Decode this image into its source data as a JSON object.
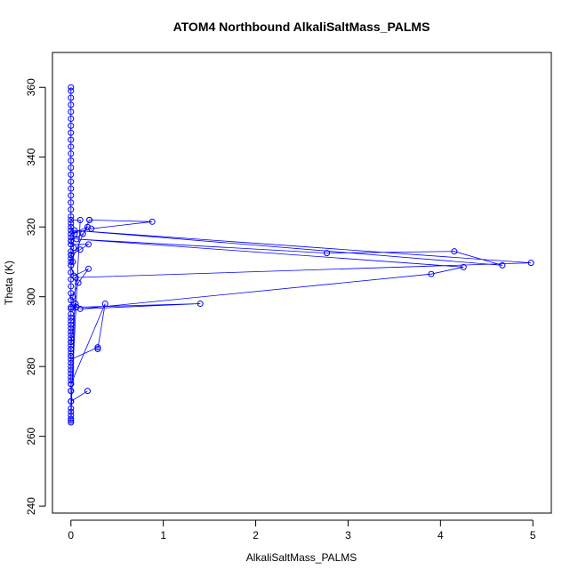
{
  "chart_data": {
    "type": "line",
    "title": "ATOM4 Northbound AlkaliSaltMass_PALMS",
    "xlabel": "AlkaliSaltMass_PALMS",
    "ylabel": "Theta (K)",
    "xlim": [
      -0.2,
      5.2
    ],
    "ylim": [
      238,
      370
    ],
    "xticks": [
      0,
      1,
      2,
      3,
      4,
      5
    ],
    "yticks": [
      240,
      260,
      280,
      300,
      320,
      340,
      360
    ],
    "grid": false,
    "legend": "none",
    "colors": {
      "series": "#0000ff",
      "axis": "#000000"
    },
    "series": [
      {
        "marker": "open-circle",
        "x": [
          0,
          0,
          0,
          0,
          0,
          0,
          0,
          0,
          0,
          0,
          0,
          0,
          0,
          0,
          0,
          0,
          0,
          0,
          0,
          0,
          0,
          0,
          0,
          0,
          0,
          0,
          0,
          0,
          0,
          0,
          0,
          0,
          0,
          0,
          0,
          0,
          0,
          0,
          0,
          0,
          0,
          0,
          0,
          0,
          0,
          0,
          0,
          0.1,
          0,
          0,
          0.04,
          0,
          0.03,
          0,
          0,
          0.2,
          0.2,
          0.88,
          0.22,
          0,
          0.18,
          0.13,
          0,
          0,
          0.19,
          0.1,
          0,
          0.02,
          0,
          0.03,
          0.19,
          0.08,
          0.02,
          0,
          0.05,
          0,
          0,
          0,
          0,
          0,
          0,
          0.37,
          0.29,
          0.29,
          0,
          0,
          0,
          0,
          0,
          0,
          0,
          0.18,
          0,
          0,
          0,
          0,
          0,
          0,
          0.05,
          4.98,
          0.04,
          4.67,
          4.15,
          2.77,
          0.06,
          4.25,
          3.9,
          0.1,
          1.4,
          0.06,
          0,
          0,
          0,
          0,
          0
        ],
        "y": [
          360,
          359,
          357,
          355,
          353,
          351,
          349,
          347,
          345,
          343,
          341,
          339,
          337,
          335,
          333,
          331,
          329,
          327,
          325,
          323,
          321,
          319,
          317,
          315,
          313,
          311,
          309,
          307,
          305,
          303,
          301,
          299,
          297,
          295,
          293,
          291,
          289,
          287,
          285,
          283,
          281,
          279,
          277,
          275,
          273,
          270,
          268,
          322,
          322,
          320,
          318,
          316,
          314,
          312,
          310,
          322,
          322,
          321.5,
          319.5,
          318,
          320,
          318,
          316,
          315,
          315,
          313.5,
          312,
          310,
          309,
          306,
          308,
          304,
          300,
          297,
          298,
          286,
          285,
          287,
          284,
          283,
          275,
          298,
          285,
          285.5,
          282,
          280,
          278,
          276,
          275,
          273,
          270,
          273,
          270,
          267,
          266,
          265,
          264.5,
          264,
          305.5,
          309.7,
          319,
          309,
          313,
          312.5,
          316.5,
          308.5,
          306.5,
          296.5,
          298,
          297,
          296.5,
          294,
          292,
          290,
          288
        ]
      }
    ]
  }
}
